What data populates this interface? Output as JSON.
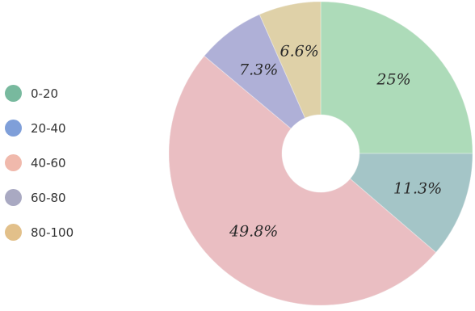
{
  "chart_data": {
    "type": "pie",
    "categories": [
      "25%",
      "11.3%",
      "49.8%",
      "7.3%",
      "6.6%"
    ],
    "values": [
      25,
      11.3,
      49.8,
      7.3,
      6.6
    ],
    "slice_colors": [
      "#a9dbb6",
      "#9fc3c6",
      "#ecbcc0",
      "#abacd7",
      "#e0d0a4"
    ],
    "legend": {
      "placement": "left",
      "entries": [
        {
          "label": "0-20",
          "color": "#78b99e"
        },
        {
          "label": "20-40",
          "color": "#7f9fd9"
        },
        {
          "label": "40-60",
          "color": "#f0b9ac"
        },
        {
          "label": "60-80",
          "color": "#a9a9c2"
        },
        {
          "label": "80-100",
          "color": "#e2c08a"
        }
      ]
    },
    "ring_color": "#d4d2d2"
  }
}
